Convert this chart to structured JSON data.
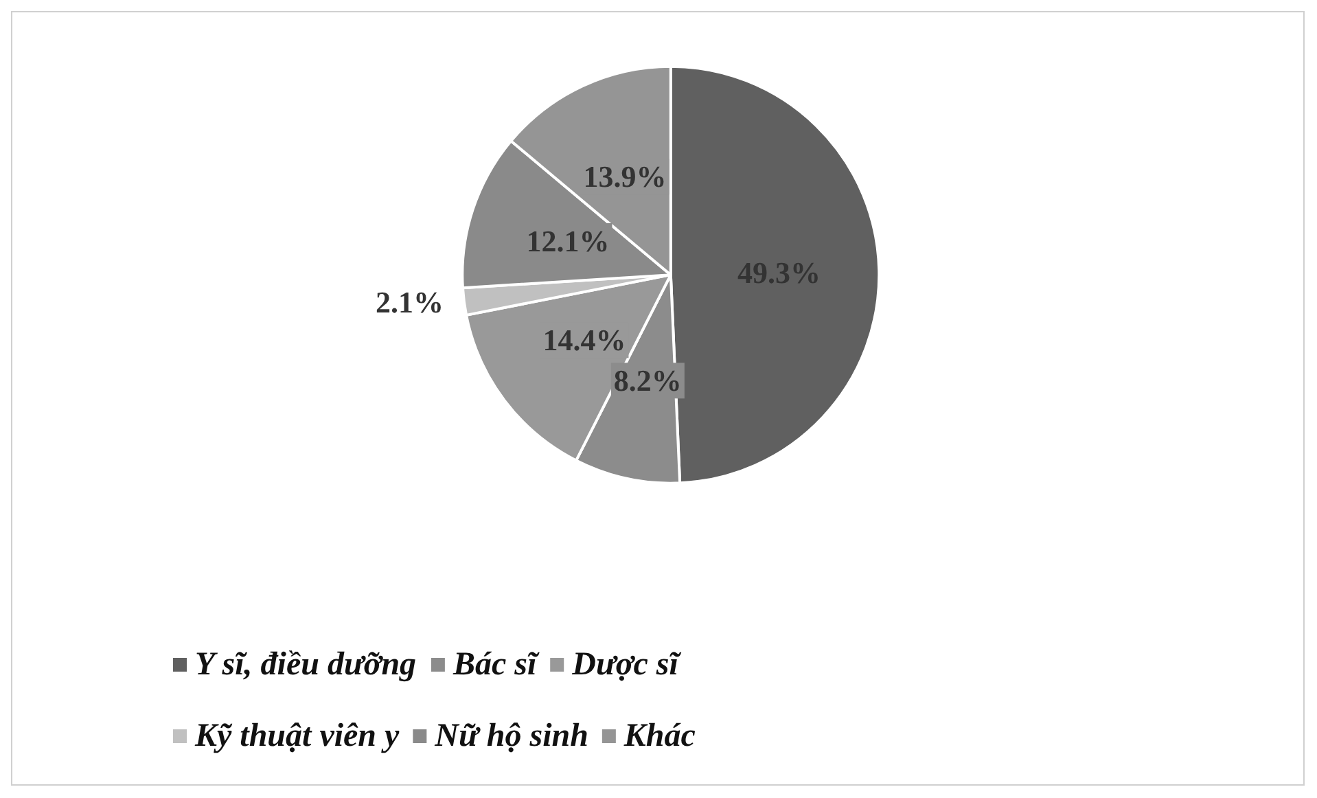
{
  "chart_data": {
    "type": "pie",
    "categories": [
      "Y sĩ, điều dưỡng",
      "Bác sĩ",
      "Dược sĩ",
      "Kỹ thuật viên y",
      "Nữ hộ sinh",
      "Khác"
    ],
    "values": [
      49.3,
      8.2,
      14.4,
      2.1,
      12.1,
      13.9
    ],
    "colors": [
      "#606060",
      "#8c8c8c",
      "#999999",
      "#c0c0c0",
      "#8a8a8a",
      "#959595"
    ],
    "value_labels": [
      "49.3%",
      "8.2%",
      "14.4%",
      "2.1%",
      "12.1%",
      "13.9%"
    ],
    "legend": "bottom"
  }
}
